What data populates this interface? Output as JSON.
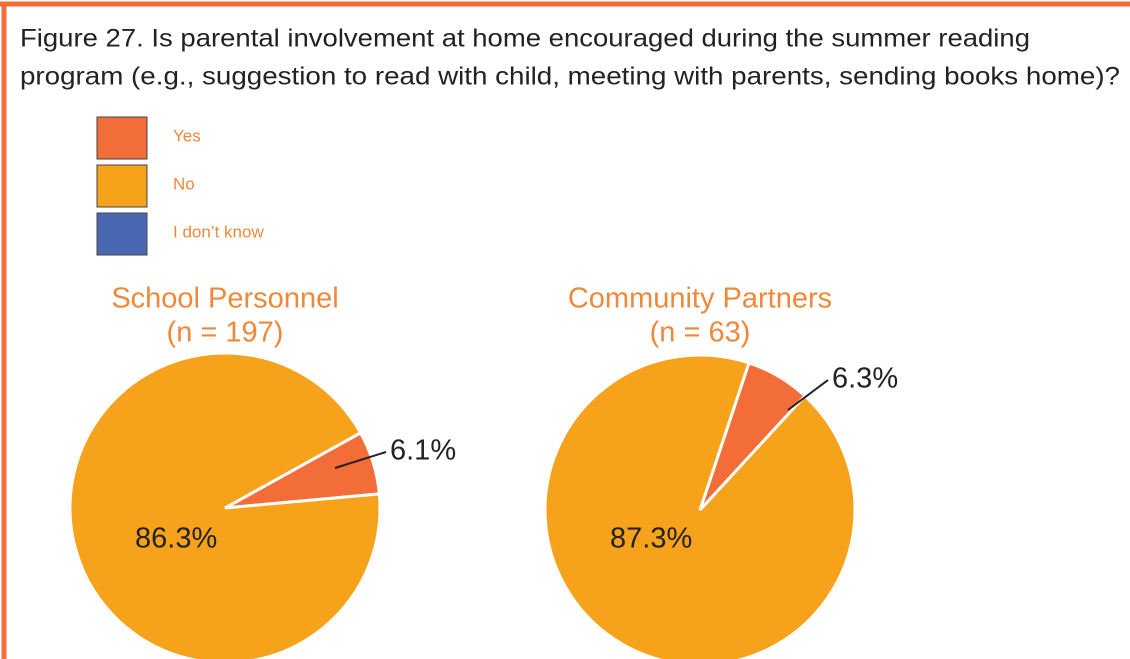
{
  "title_lines": [
    "Figure 27. Is parental involvement at home encouraged during the summer reading",
    "program (e.g., suggestion to read with child, meeting with parents, sending books home)?"
  ],
  "chart_data": [
    {
      "type": "pie",
      "title": "School Personnel",
      "subtitle": "(n = 197)",
      "categories": [
        "Yes",
        "No",
        "I don’t know"
      ],
      "values": [
        6.1,
        86.3,
        null
      ],
      "value_labels": [
        "6.1%",
        "86.3%",
        null
      ],
      "colors": [
        "#f26d38",
        "#f7a21b",
        "#4a67b1"
      ]
    },
    {
      "type": "pie",
      "title": "Community Partners",
      "subtitle": "(n = 63)",
      "categories": [
        "Yes",
        "No",
        "I don’t know"
      ],
      "values": [
        6.3,
        87.3,
        null
      ],
      "value_labels": [
        "6.3%",
        "87.3%",
        null
      ],
      "colors": [
        "#f26d38",
        "#f7a21b",
        "#4a67b1"
      ]
    }
  ]
}
